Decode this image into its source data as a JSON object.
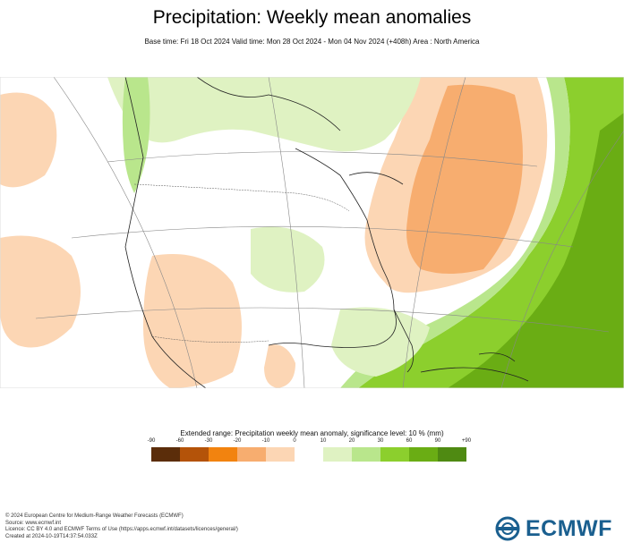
{
  "title": "Precipitation: Weekly mean anomalies",
  "subtitle": "Base time: Fri 18 Oct 2024 Valid time: Mon 28 Oct 2024 - Mon 04 Nov 2024 (+408h) Area : North America",
  "legend": {
    "title": "Extended range: Precipitation weekly mean anomaly, significance level: 10 % (mm)",
    "ticks": [
      "-90",
      "-60",
      "-30",
      "-20",
      "-10",
      "0",
      "10",
      "20",
      "30",
      "60",
      "90",
      "+90"
    ],
    "colors": [
      "#5b2d0a",
      "#b45309",
      "#f2830f",
      "#f7ad6f",
      "#fcd6b4",
      "#ffffff",
      "#dff2c2",
      "#b9e68c",
      "#8ccf2d",
      "#6aad14",
      "#4f8a12"
    ]
  },
  "footer": {
    "line1": "© 2024 European Centre for Medium-Range Weather Forecasts (ECMWF)",
    "line2": "Source: www.ecmwf.int",
    "line3": "Licence: CC BY 4.0 and ECMWF Terms of Use (https://apps.ecmwf.int/datasets/licences/general/)",
    "line4": "Created at 2024-10-19T14:37:54.033Z"
  },
  "logo_text": "ECMWF",
  "map": {
    "region": "North America",
    "anomaly_colors": {
      "dry_light": "#fcd6b4",
      "dry_medium": "#f7ad6f",
      "wet_light": "#dff2c2",
      "wet_medium": "#b9e68c",
      "wet_strong": "#8ccf2d",
      "wet_darker": "#6aad14"
    }
  }
}
